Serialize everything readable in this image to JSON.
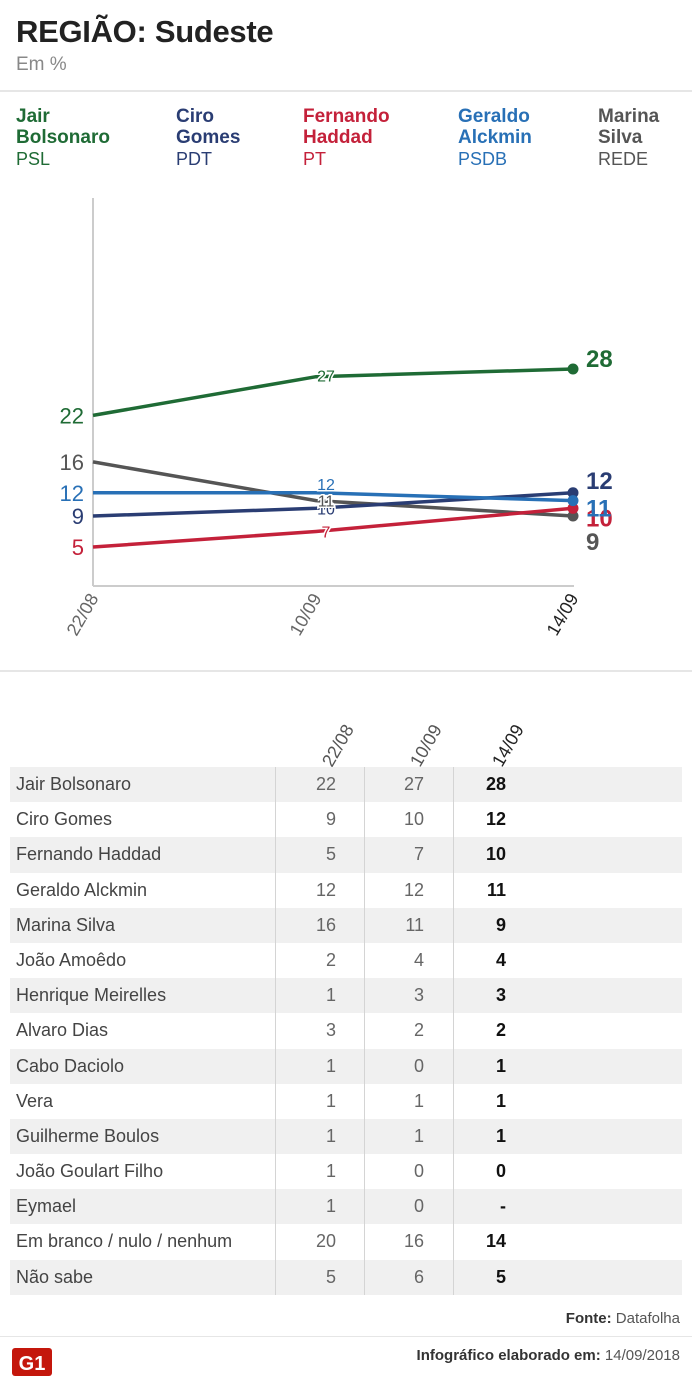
{
  "header": {
    "title": "REGIÃO: Sudeste",
    "subtitle": "Em %"
  },
  "legend": [
    {
      "name": "Jair Bolsonaro",
      "party": "PSL",
      "color": "#1f6b35"
    },
    {
      "name": "Ciro Gomes",
      "party": "PDT",
      "color": "#2a3d73"
    },
    {
      "name": "Fernando Haddad",
      "party": "PT",
      "color": "#c4213a"
    },
    {
      "name": "Geraldo Alckmin",
      "party": "PSDB",
      "color": "#2870b6"
    },
    {
      "name": "Marina Silva",
      "party": "REDE",
      "color": "#555555"
    }
  ],
  "chart_data": {
    "type": "line",
    "title": "REGIÃO: Sudeste",
    "ylabel": "Em %",
    "x": [
      "22/08",
      "10/09",
      "14/09"
    ],
    "ylim": [
      0,
      30
    ],
    "series": [
      {
        "name": "Jair Bolsonaro",
        "color": "#1f6b35",
        "values": [
          22,
          27,
          28
        ]
      },
      {
        "name": "Ciro Gomes",
        "color": "#2a3d73",
        "values": [
          9,
          10,
          12
        ]
      },
      {
        "name": "Fernando Haddad",
        "color": "#c4213a",
        "values": [
          5,
          7,
          10
        ]
      },
      {
        "name": "Geraldo Alckmin",
        "color": "#2870b6",
        "values": [
          12,
          12,
          11
        ]
      },
      {
        "name": "Marina Silva",
        "color": "#555555",
        "values": [
          16,
          11,
          9
        ]
      }
    ]
  },
  "table": {
    "columns": [
      "22/08",
      "10/09",
      "14/09"
    ],
    "rows": [
      {
        "name": "Jair Bolsonaro",
        "values": [
          "22",
          "27",
          "28"
        ]
      },
      {
        "name": "Ciro Gomes",
        "values": [
          "9",
          "10",
          "12"
        ]
      },
      {
        "name": "Fernando Haddad",
        "values": [
          "5",
          "7",
          "10"
        ]
      },
      {
        "name": "Geraldo Alckmin",
        "values": [
          "12",
          "12",
          "11"
        ]
      },
      {
        "name": "Marina Silva",
        "values": [
          "16",
          "11",
          "9"
        ]
      },
      {
        "name": "João Amoêdo",
        "values": [
          "2",
          "4",
          "4"
        ]
      },
      {
        "name": "Henrique Meirelles",
        "values": [
          "1",
          "3",
          "3"
        ]
      },
      {
        "name": "Alvaro Dias",
        "values": [
          "3",
          "2",
          "2"
        ]
      },
      {
        "name": "Cabo Daciolo",
        "values": [
          "1",
          "0",
          "1"
        ]
      },
      {
        "name": "Vera",
        "values": [
          "1",
          "1",
          "1"
        ]
      },
      {
        "name": "Guilherme Boulos",
        "values": [
          "1",
          "1",
          "1"
        ]
      },
      {
        "name": "João Goulart Filho",
        "values": [
          "1",
          "0",
          "0"
        ]
      },
      {
        "name": "Eymael",
        "values": [
          "1",
          "0",
          "-"
        ]
      },
      {
        "name": "Em branco / nulo / nenhum",
        "values": [
          "20",
          "16",
          "14"
        ]
      },
      {
        "name": "Não sabe",
        "values": [
          "5",
          "6",
          "5"
        ]
      }
    ]
  },
  "footer": {
    "source_label": "Fonte:",
    "source": "Datafolha",
    "date_label": "Infográfico elaborado em:",
    "date": "14/09/2018",
    "logo_text": "G1",
    "logo_color": "#c4170c"
  }
}
